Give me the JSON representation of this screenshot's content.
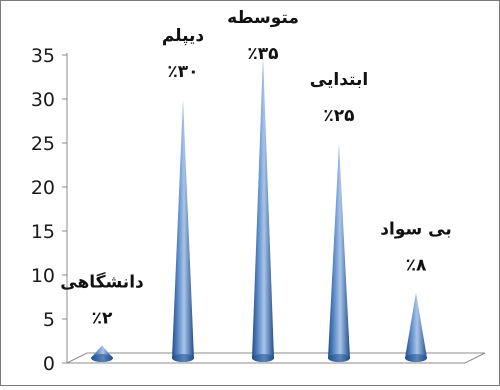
{
  "chart_data": {
    "type": "bar",
    "shape": "cone",
    "categories": [
      "دانشگاهی",
      "دیپلم",
      "متوسطه",
      "ابتدایی",
      "بی سواد"
    ],
    "values": [
      2,
      30,
      35,
      25,
      8
    ],
    "data_labels": [
      "٪۲",
      "٪۳۰",
      "٪۳۵",
      "٪۲۵",
      "٪۸"
    ],
    "ylim": [
      0,
      35
    ],
    "yticks": [
      0,
      5,
      10,
      15,
      20,
      25,
      30,
      35
    ],
    "gridlines": false,
    "legend": "none",
    "colors": {
      "cone_dark": "#1f4e8c",
      "cone_mid": "#4f81bd",
      "cone_light": "#a9c4e8",
      "floor_line": "#8c8c8c",
      "axis_line": "#8c8c8c"
    }
  }
}
